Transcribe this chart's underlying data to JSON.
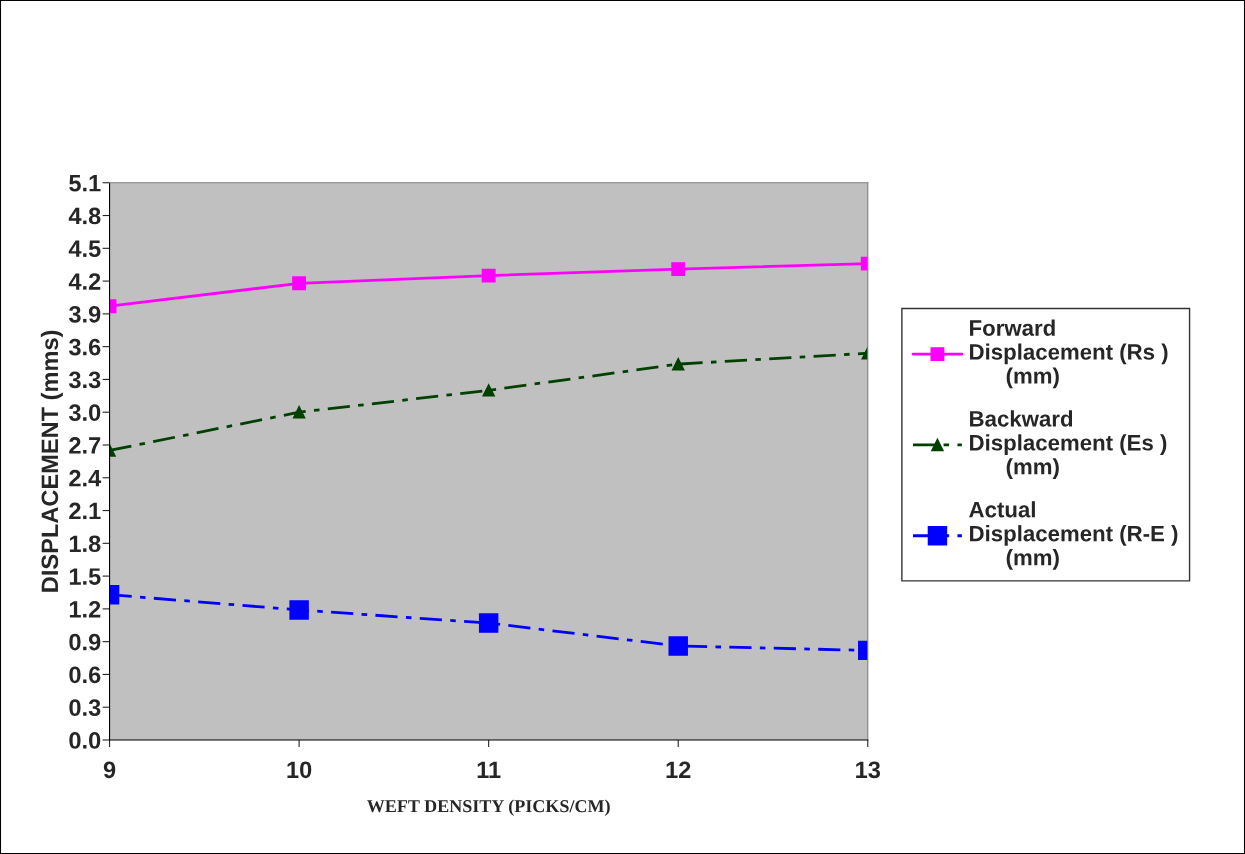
{
  "chart_data": {
    "type": "line",
    "xlabel": "WEFT DENSITY (PICKS/CM)",
    "ylabel": "DISPLACEMENT (mms)",
    "x": [
      9,
      10,
      11,
      12,
      13
    ],
    "series": [
      {
        "name": "Forward Displacement (Rs ) (mm)",
        "color": "#ff00ff",
        "values": [
          3.97,
          4.18,
          4.25,
          4.31,
          4.36
        ],
        "marker": "square",
        "line_style": "solid"
      },
      {
        "name": "Backward Displacement (Es ) (mm)",
        "color": "#004000",
        "values": [
          2.65,
          3.0,
          3.2,
          3.44,
          3.54
        ],
        "marker": "triangle",
        "line_style": "dashed"
      },
      {
        "name": "Actual Displacement (R-E ) (mm)",
        "color": "#0000ff",
        "values": [
          1.33,
          1.19,
          1.07,
          0.86,
          0.82
        ],
        "marker": "square",
        "line_style": "dashed"
      }
    ],
    "xlim": [
      9,
      13
    ],
    "xticks": [
      9,
      10,
      11,
      12,
      13
    ],
    "ylim": [
      0,
      5.1
    ],
    "yticks": [
      {
        "value": 0,
        "label": "0.0"
      },
      {
        "value": 0.3,
        "label": "0.3"
      },
      {
        "value": 0.6,
        "label": "0.6"
      },
      {
        "value": 0.9,
        "label": "0.9"
      },
      {
        "value": 1.2,
        "label": "1.2"
      },
      {
        "value": 1.5,
        "label": "1.5"
      },
      {
        "value": 1.8,
        "label": "1.8"
      },
      {
        "value": 2.1,
        "label": "2.1"
      },
      {
        "value": 2.4,
        "label": "2.4"
      },
      {
        "value": 2.7,
        "label": "2.7"
      },
      {
        "value": 3.0,
        "label": "3.0"
      },
      {
        "value": 3.3,
        "label": "3.3"
      },
      {
        "value": 3.6,
        "label": "3.6"
      },
      {
        "value": 3.9,
        "label": "3.9"
      },
      {
        "value": 4.2,
        "label": "4.2"
      },
      {
        "value": 4.5,
        "label": "4.5"
      },
      {
        "value": 4.8,
        "label": "4.8"
      },
      {
        "value": 5.1,
        "label": "5.1"
      }
    ],
    "grid": false,
    "legend": "right"
  }
}
